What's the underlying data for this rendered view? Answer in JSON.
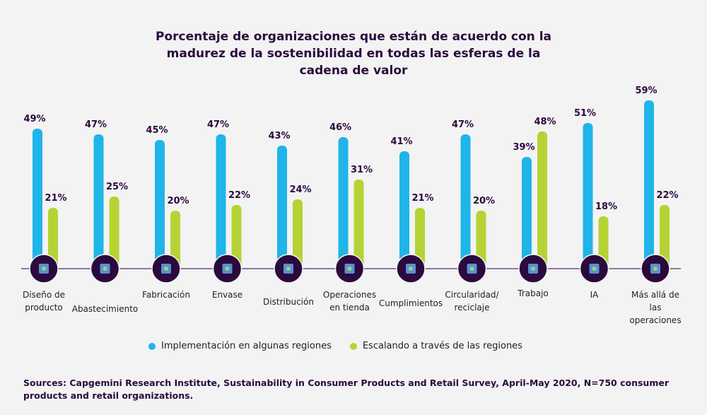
{
  "chart_data": {
    "type": "bar",
    "title": "Porcentaje de organizaciones que están de acuerdo con la madurez de la sostenibilidad en todas las esferas de la cadena de valor",
    "categories": [
      "Diseño de producto",
      "Abastecimiento",
      "Fabricación",
      "Envase",
      "Distribución",
      "Operaciones en tienda",
      "Cumplimientos",
      "Circularidad/ reciclaje",
      "Trabajo",
      "IA",
      "Más allá de las operaciones"
    ],
    "category_icons": [
      "product-design-icon",
      "sourcing-icon",
      "gear-check-icon",
      "package-icon",
      "network-icon",
      "store-icon",
      "box-delivery-icon",
      "recycle-document-icon",
      "worker-icon",
      "ai-monitor-icon",
      "eye-icon"
    ],
    "series": [
      {
        "name": "Implementación en algunas regiones",
        "color": "#1fb5e8",
        "values": [
          49,
          47,
          45,
          47,
          43,
          46,
          41,
          47,
          39,
          51,
          59
        ]
      },
      {
        "name": "Escalando a través de las regiones",
        "color": "#b5d334",
        "values": [
          21,
          25,
          20,
          22,
          24,
          31,
          21,
          20,
          48,
          18,
          22
        ]
      }
    ],
    "value_suffix": "%",
    "ylim": [
      0,
      60
    ],
    "grid": false,
    "legend_position": "bottom",
    "icon_circle_color": "#2b0a3d",
    "axis_line_color": "#8b78a6"
  },
  "source": "Sources: Capgemini Research Institute, Sustainability in Consumer Products and Retail Survey, April-May 2020, N=750 consumer products and retail organizations."
}
